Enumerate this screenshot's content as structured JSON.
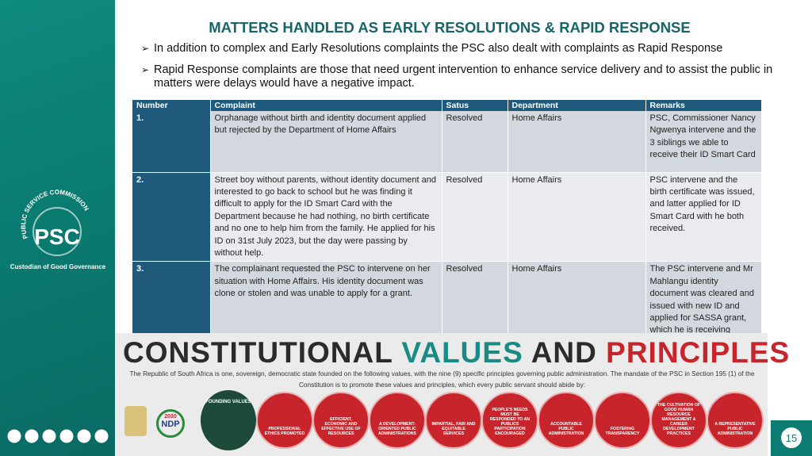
{
  "sidebar": {
    "arc_text": "PUBLIC SERVICE COMMISSION",
    "logo": "PSC",
    "tagline": "Custodian of Good Governance"
  },
  "header": {
    "title": "MATTERS HANDLED AS EARLY RESOLUTIONS & RAPID RESPONSE",
    "bullets": [
      "In addition to complex and Early Resolutions complaints the PSC also dealt with complaints as Rapid Response",
      "Rapid Response complaints are those that need urgent intervention to enhance service delivery and to assist the public  in matters were delays would have a negative impact."
    ]
  },
  "table": {
    "columns": [
      "Number",
      "Complaint",
      "Satus",
      "Department",
      "Remarks"
    ],
    "rows": [
      [
        "1.",
        "Orphanage without birth and identity document applied but rejected by the Department of Home Affairs",
        "Resolved",
        "Home Affairs",
        "PSC, Commissioner Nancy Ngwenya intervene and the 3 siblings we able to receive their ID Smart Card"
      ],
      [
        "2.",
        "Street boy without parents, without identity document and interested to go back to school but he was finding it difficult to apply for the ID Smart Card with the Department because he had nothing, no birth certificate and no one to help him from the family. He applied for his ID on 31st July 2023, but the day were passing by without help.",
        "Resolved",
        "Home Affairs",
        "PSC intervene and the birth certificate was issued, and latter applied for ID Smart Card with he both received."
      ],
      [
        "3.",
        "The complainant requested the PSC to intervene on her situation with Home Affairs. His identity document was clone or stolen and was unable to apply for a grant.",
        "Resolved",
        "Home Affairs",
        "The PSC intervene and Mr Mahlangu identity document was cleared and issued with new ID and applied for SASSA grant, which he is receiving"
      ]
    ]
  },
  "banner": {
    "title": [
      "CONSTITUTIONAL",
      "VALUES",
      "AND",
      "PRINCIPLES"
    ],
    "text": "The Republic of South Africa is one, sovereign, democratic state founded on the following values, with the nine (9) specific principles governing public administration. The mandate of the PSC in Section 195 (1) of the Constitution is to promote these values and principles, which every public servant should abide by:",
    "ndp": [
      "2030",
      "NDP"
    ],
    "founding": "FOUNDING VALUES",
    "principles": [
      "PROFESSIONAL ETHICS PROMOTED",
      "EFFICIENT, ECONOMIC AND EFFECTIVE USE OF RESOURCES",
      "A DEVELOPMENT-ORIENTED PUBLIC ADMINISTRATIONS",
      "IMPARTIAL, FAIR AND EQUITABLE SERVICES",
      "PEOPLE'S NEEDS MUST BE RESPONDED TO AN PUBLICS PARTICIPATION ENCOURAGED",
      "ACCOUNTABLE PUBLIC ADMINISTRATION",
      "FOSTERING TRANSPARENCY",
      "THE CULTIVATION OF GOOD HUMAN RESOURCE MANAGEMENT & CAREER DEVELOPMENT PRACTICES",
      "A REPRESENTATIVE PUBLIC ADMINISTRATION"
    ]
  },
  "page_number": "15"
}
